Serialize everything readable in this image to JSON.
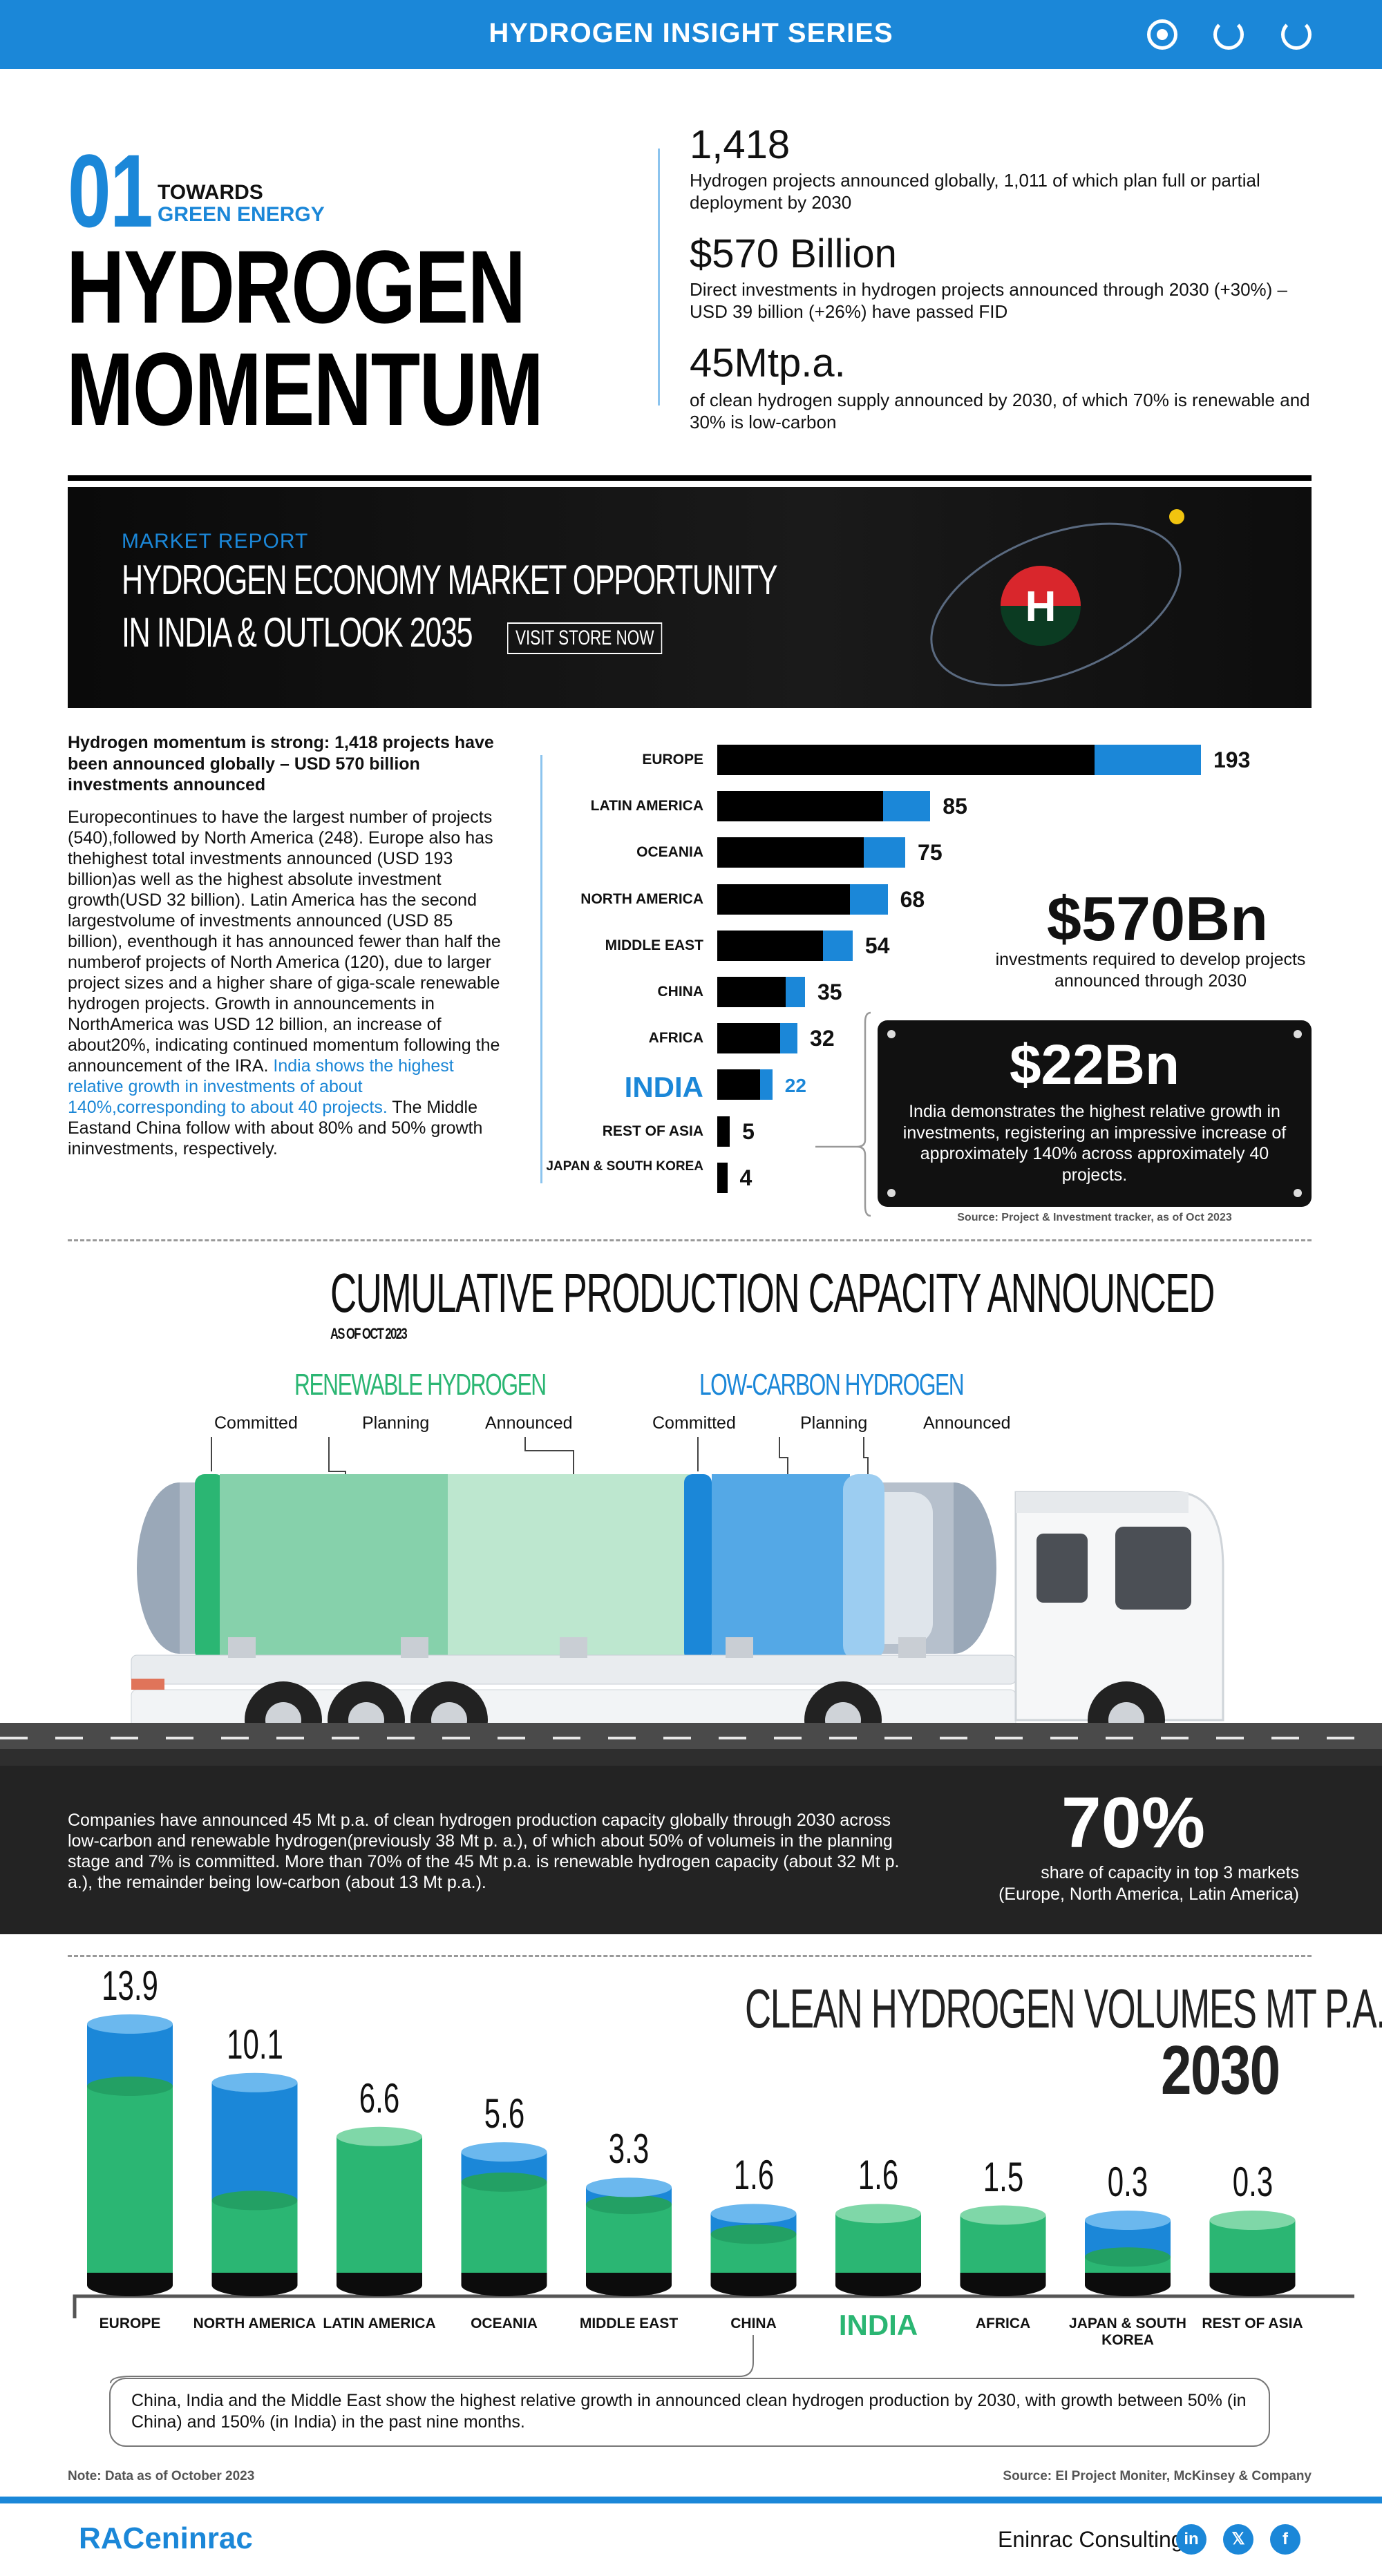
{
  "header": {
    "title": "HYDROGEN INSIGHT SERIES",
    "icons": [
      "target-icon",
      "refresh-icon",
      "refresh-icon"
    ]
  },
  "intro": {
    "number": "01",
    "kicker_line1": "TOWARDS",
    "kicker_line2": "GREEN ENERGY",
    "title_line1": "HYDROGEN",
    "title_line2": "MOMENTUM",
    "stats": [
      {
        "value": "1,418",
        "desc": "Hydrogen projects announced globally, 1,011 of which plan full or partial deployment by 2030"
      },
      {
        "value": "$570 Billion",
        "desc": "Direct investments in hydrogen projects announced through 2030 (+30%) – USD 39 billion (+26%) have passed FID"
      },
      {
        "value": "45Mtp.a.",
        "desc": "of clean hydrogen supply announced by 2030, of which 70% is renewable and 30% is low-carbon"
      }
    ]
  },
  "banner": {
    "kicker": "MARKET REPORT",
    "line1": "HYDROGEN ECONOMY MARKET OPPORTUNITY",
    "line2": "IN INDIA & OUTLOOK 2035",
    "button": "VISIT STORE NOW",
    "atom_letter": "H"
  },
  "momentum": {
    "heading": "Hydrogen momentum is strong: 1,418 projects have been announced globally – USD 570 billion investments announced",
    "body_part1": "Europecontinues to have the largest number of projects (540),followed by North America (248). Europe also has thehighest total investments announced (USD 193 billion)as well as the highest absolute investment growth(USD 32 billion). Latin America has the second largestvolume of investments announced (USD 85 billion), eventhough it has announced fewer than half the numberof projects of North America (120), due to larger project sizes and a higher share of giga-scale renewable hydrogen projects. Growth in announcements in NorthAmerica was USD 12 billion, an increase of about20%, indicating continued momentum following the announcement of the IRA. ",
    "body_highlight": "India shows the highest relative growth in investments of about 140%,corresponding to about 40 projects.",
    "body_part2": " The Middle Eastand China follow with about 80% and 50% growth ininvestments, respectively."
  },
  "chart_data": [
    {
      "type": "bar",
      "orientation": "horizontal",
      "categories": [
        "EUROPE",
        "LATIN AMERICA",
        "OCEANIA",
        "NORTH AMERICA",
        "MIDDLE EAST",
        "CHINA",
        "AFRICA",
        "INDIA",
        "REST OF ASIA",
        "JAPAN & SOUTH KOREA"
      ],
      "values": [
        193,
        85,
        75,
        68,
        54,
        35,
        32,
        22,
        5,
        4
      ],
      "series_colors": [
        "#000000",
        "#1b87d8"
      ],
      "highlight_category": "INDIA",
      "xlim": [
        0,
        193
      ]
    },
    {
      "type": "bar",
      "categories": [
        "EUROPE",
        "NORTH AMERICA",
        "LATIN AMERICA",
        "OCEANIA",
        "MIDDLE EAST",
        "CHINA",
        "INDIA",
        "AFRICA",
        "JAPAN & SOUTH KOREA",
        "REST OF ASIA"
      ],
      "values": [
        13.9,
        10.1,
        6.6,
        5.6,
        3.3,
        1.6,
        1.6,
        1.5,
        0.3,
        0.3
      ],
      "value_labels": [
        "13.9",
        "10.1",
        "6.6",
        "5.6",
        "3.3",
        "1.6",
        "1.6",
        "1.5",
        "0.3",
        "0.3"
      ],
      "title": "CLEAN HYDROGEN VOLUMES MT P.A.",
      "subtitle": "2030",
      "series_colors": [
        "#2bb673",
        "#1b87d8"
      ],
      "highlight_category": "INDIA",
      "ylim": [
        0,
        13.9
      ]
    }
  ],
  "invest": {
    "big_value": "$570Bn",
    "big_desc": "investments required to develop projects announced through 2030",
    "card_value": "$22Bn",
    "card_desc": "India demonstrates the highest relative growth in investments, registering an impressive increase of approximately 140% across approximately 40 projects.",
    "source": "Source: Project & Investment tracker, as of Oct 2023"
  },
  "capacity": {
    "title": "CUMULATIVE PRODUCTION CAPACITY ANNOUNCED",
    "subtitle": "AS OF OCT 2023",
    "renewable_label": "RENEWABLE HYDROGEN",
    "lowcarbon_label": "LOW-CARBON HYDROGEN",
    "stages": [
      "Committed",
      "Planning",
      "Announced"
    ],
    "colors": {
      "renewable": "#2bb673",
      "lowcarbon": "#1b87d8"
    }
  },
  "band": {
    "text": "Companies have announced 45 Mt p.a. of clean hydrogen production capacity globally through 2030 across low-carbon and renewable hydrogen(previously 38 Mt p. a.), of which about 50% of volumeis in the planning stage and 7% is committed. More than 70% of the 45 Mt p.a. is renewable hydrogen capacity (about 32 Mt p. a.), the remainder being low-carbon (about 13 Mt p.a.).",
    "percent": "70%",
    "percent_desc_line1": "share of capacity in top 3 markets",
    "percent_desc_line2": "(Europe, North America, Latin America)"
  },
  "volumes_note": "China, India and the Middle East show the highest relative growth in announced clean hydrogen production by 2030, with growth between 50% (in China) and 150% (in India) in the past nine months.",
  "footer": {
    "note": "Note: Data as of October 2023",
    "source": "Source: EI Project Moniter, McKinsey & Company",
    "logo": "RACeninrac",
    "brand": "Eninrac Consulting",
    "social": [
      "in",
      "𝕏",
      "f"
    ]
  }
}
